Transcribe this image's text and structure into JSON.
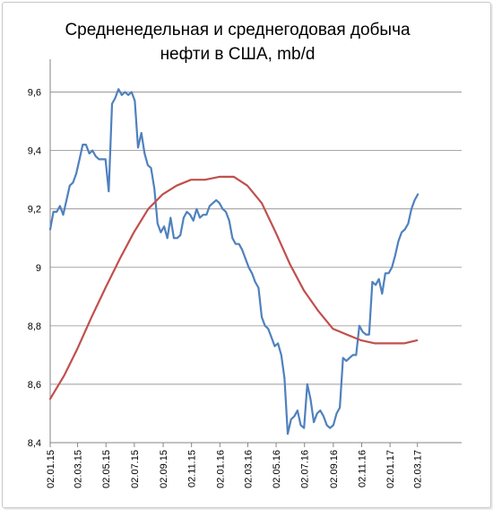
{
  "chart_data": {
    "type": "line",
    "title": "Средненедельная и среднегодовая  добыча нефти в США, mb/d",
    "title_lines": [
      "Средненедельная и среднегодовая  добыча",
      "нефти в США, mb/d"
    ],
    "xlabel": "",
    "ylabel": "",
    "ylim": [
      8.4,
      9.7
    ],
    "yticks": [
      8.4,
      8.6,
      8.8,
      9.0,
      9.2,
      9.4,
      9.6
    ],
    "ytick_labels": [
      "8,4",
      "8,6",
      "8,8",
      "9",
      "9,2",
      "9,4",
      "9,6"
    ],
    "xlim": [
      "2015-01-02",
      "2017-06-05"
    ],
    "xticks": [
      "2015-01-02",
      "2015-03-02",
      "2015-05-02",
      "2015-07-02",
      "2015-09-02",
      "2015-11-02",
      "2016-01-02",
      "2016-03-02",
      "2016-05-02",
      "2016-07-02",
      "2016-09-02",
      "2016-11-02",
      "2017-01-02",
      "2017-03-02"
    ],
    "xtick_labels": [
      "02.01.15",
      "02.03.15",
      "02.05.15",
      "02.07.15",
      "02.09.15",
      "02.11.15",
      "02.01.16",
      "02.03.16",
      "02.05.16",
      "02.07.16",
      "02.09.16",
      "02.11.16",
      "02.01.17",
      "02.03.17"
    ],
    "grid": {
      "horizontal": true,
      "vertical": false
    },
    "legend": "none",
    "series": [
      {
        "color": "#4f81bd",
        "points": [
          [
            "2015-01-02",
            9.13
          ],
          [
            "2015-01-09",
            9.19
          ],
          [
            "2015-01-16",
            9.19
          ],
          [
            "2015-01-23",
            9.21
          ],
          [
            "2015-01-30",
            9.18
          ],
          [
            "2015-02-06",
            9.23
          ],
          [
            "2015-02-13",
            9.28
          ],
          [
            "2015-02-20",
            9.29
          ],
          [
            "2015-02-27",
            9.32
          ],
          [
            "2015-03-06",
            9.37
          ],
          [
            "2015-03-13",
            9.42
          ],
          [
            "2015-03-20",
            9.42
          ],
          [
            "2015-03-27",
            9.39
          ],
          [
            "2015-04-03",
            9.4
          ],
          [
            "2015-04-10",
            9.38
          ],
          [
            "2015-04-17",
            9.37
          ],
          [
            "2015-04-24",
            9.37
          ],
          [
            "2015-05-01",
            9.37
          ],
          [
            "2015-05-08",
            9.26
          ],
          [
            "2015-05-15",
            9.56
          ],
          [
            "2015-05-22",
            9.58
          ],
          [
            "2015-05-29",
            9.61
          ],
          [
            "2015-06-05",
            9.59
          ],
          [
            "2015-06-12",
            9.6
          ],
          [
            "2015-06-19",
            9.59
          ],
          [
            "2015-06-26",
            9.6
          ],
          [
            "2015-07-03",
            9.57
          ],
          [
            "2015-07-10",
            9.41
          ],
          [
            "2015-07-17",
            9.46
          ],
          [
            "2015-07-24",
            9.39
          ],
          [
            "2015-07-31",
            9.35
          ],
          [
            "2015-08-07",
            9.34
          ],
          [
            "2015-08-14",
            9.27
          ],
          [
            "2015-08-21",
            9.15
          ],
          [
            "2015-08-28",
            9.12
          ],
          [
            "2015-09-04",
            9.14
          ],
          [
            "2015-09-11",
            9.1
          ],
          [
            "2015-09-18",
            9.17
          ],
          [
            "2015-09-25",
            9.1
          ],
          [
            "2015-10-02",
            9.1
          ],
          [
            "2015-10-09",
            9.11
          ],
          [
            "2015-10-16",
            9.17
          ],
          [
            "2015-10-23",
            9.19
          ],
          [
            "2015-10-30",
            9.18
          ],
          [
            "2015-11-06",
            9.16
          ],
          [
            "2015-11-13",
            9.2
          ],
          [
            "2015-11-20",
            9.17
          ],
          [
            "2015-11-27",
            9.18
          ],
          [
            "2015-12-04",
            9.18
          ],
          [
            "2015-12-11",
            9.21
          ],
          [
            "2015-12-18",
            9.22
          ],
          [
            "2015-12-25",
            9.23
          ],
          [
            "2016-01-01",
            9.22
          ],
          [
            "2016-01-08",
            9.2
          ],
          [
            "2016-01-15",
            9.19
          ],
          [
            "2016-01-22",
            9.16
          ],
          [
            "2016-01-29",
            9.1
          ],
          [
            "2016-02-05",
            9.08
          ],
          [
            "2016-02-12",
            9.08
          ],
          [
            "2016-02-19",
            9.06
          ],
          [
            "2016-02-26",
            9.03
          ],
          [
            "2016-03-04",
            9.0
          ],
          [
            "2016-03-11",
            8.98
          ],
          [
            "2016-03-18",
            8.95
          ],
          [
            "2016-03-25",
            8.93
          ],
          [
            "2016-04-01",
            8.83
          ],
          [
            "2016-04-08",
            8.8
          ],
          [
            "2016-04-15",
            8.79
          ],
          [
            "2016-04-22",
            8.76
          ],
          [
            "2016-04-29",
            8.73
          ],
          [
            "2016-05-06",
            8.74
          ],
          [
            "2016-05-13",
            8.7
          ],
          [
            "2016-05-20",
            8.62
          ],
          [
            "2016-05-27",
            8.43
          ],
          [
            "2016-06-03",
            8.48
          ],
          [
            "2016-06-10",
            8.49
          ],
          [
            "2016-06-17",
            8.51
          ],
          [
            "2016-06-24",
            8.46
          ],
          [
            "2016-07-01",
            8.45
          ],
          [
            "2016-07-08",
            8.6
          ],
          [
            "2016-07-15",
            8.55
          ],
          [
            "2016-07-22",
            8.47
          ],
          [
            "2016-07-29",
            8.5
          ],
          [
            "2016-08-05",
            8.51
          ],
          [
            "2016-08-12",
            8.49
          ],
          [
            "2016-08-19",
            8.46
          ],
          [
            "2016-08-26",
            8.45
          ],
          [
            "2016-09-02",
            8.46
          ],
          [
            "2016-09-09",
            8.5
          ],
          [
            "2016-09-16",
            8.52
          ],
          [
            "2016-09-23",
            8.69
          ],
          [
            "2016-09-30",
            8.68
          ],
          [
            "2016-10-07",
            8.69
          ],
          [
            "2016-10-14",
            8.7
          ],
          [
            "2016-10-21",
            8.7
          ],
          [
            "2016-10-28",
            8.8
          ],
          [
            "2016-11-04",
            8.78
          ],
          [
            "2016-11-11",
            8.77
          ],
          [
            "2016-11-18",
            8.77
          ],
          [
            "2016-11-25",
            8.95
          ],
          [
            "2016-12-02",
            8.94
          ],
          [
            "2016-12-09",
            8.96
          ],
          [
            "2016-12-16",
            8.91
          ],
          [
            "2016-12-23",
            8.98
          ],
          [
            "2016-12-30",
            8.98
          ],
          [
            "2017-01-06",
            9.0
          ],
          [
            "2017-01-13",
            9.04
          ],
          [
            "2017-01-20",
            9.09
          ],
          [
            "2017-01-27",
            9.12
          ],
          [
            "2017-02-03",
            9.13
          ],
          [
            "2017-02-10",
            9.15
          ],
          [
            "2017-02-17",
            9.2
          ],
          [
            "2017-02-24",
            9.23
          ],
          [
            "2017-03-03",
            9.25
          ]
        ]
      },
      {
        "color": "#c0504d",
        "points": [
          [
            "2015-01-02",
            8.55
          ],
          [
            "2015-02-01",
            8.63
          ],
          [
            "2015-03-01",
            8.72
          ],
          [
            "2015-04-01",
            8.83
          ],
          [
            "2015-05-01",
            8.93
          ],
          [
            "2015-06-01",
            9.03
          ],
          [
            "2015-07-01",
            9.12
          ],
          [
            "2015-08-01",
            9.2
          ],
          [
            "2015-09-01",
            9.25
          ],
          [
            "2015-10-01",
            9.28
          ],
          [
            "2015-11-01",
            9.3
          ],
          [
            "2015-12-01",
            9.3
          ],
          [
            "2016-01-01",
            9.31
          ],
          [
            "2016-02-01",
            9.31
          ],
          [
            "2016-03-01",
            9.28
          ],
          [
            "2016-04-01",
            9.22
          ],
          [
            "2016-05-01",
            9.12
          ],
          [
            "2016-06-01",
            9.01
          ],
          [
            "2016-07-01",
            8.92
          ],
          [
            "2016-08-01",
            8.85
          ],
          [
            "2016-09-01",
            8.79
          ],
          [
            "2016-10-01",
            8.77
          ],
          [
            "2016-11-01",
            8.75
          ],
          [
            "2016-12-01",
            8.74
          ],
          [
            "2017-01-01",
            8.74
          ],
          [
            "2017-02-01",
            8.74
          ],
          [
            "2017-03-01",
            8.75
          ]
        ]
      }
    ]
  }
}
